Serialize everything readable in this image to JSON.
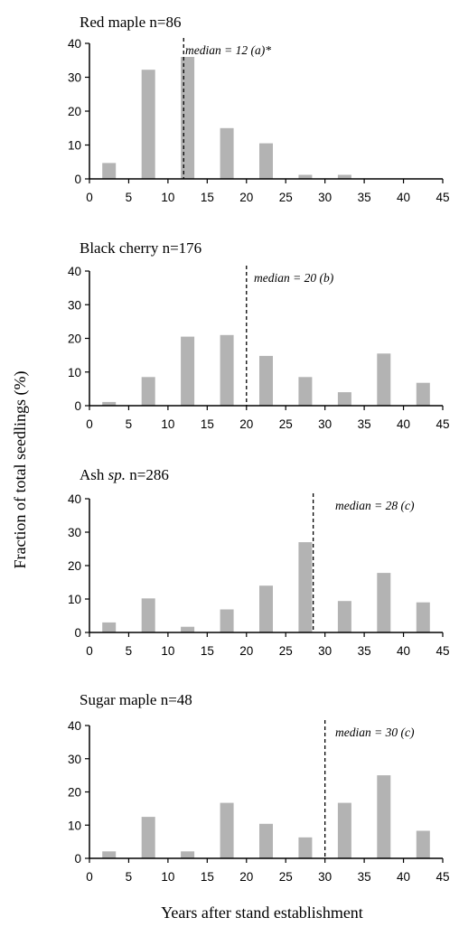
{
  "figure": {
    "ylabel": "Fraction of total seedlings (%)",
    "xlabel": "Years after stand establishment"
  },
  "chart_data": [
    {
      "type": "bar",
      "title": "Red maple n=86",
      "title_parts": [
        {
          "text": "Red maple n=86",
          "italic": false
        }
      ],
      "x": [
        2.5,
        7.5,
        12.5,
        17.5,
        22.5,
        27.5,
        32.5
      ],
      "values": [
        4.7,
        32.2,
        36.0,
        15.0,
        10.5,
        1.2,
        1.2
      ],
      "median": 12,
      "median_label": "median = 12 (a)*",
      "xlim": [
        0,
        45
      ],
      "ylim": [
        0,
        40
      ],
      "xticks": [
        0,
        5,
        10,
        15,
        20,
        25,
        30,
        35,
        40,
        45
      ],
      "yticks": [
        0,
        10,
        20,
        30,
        40
      ],
      "colors": {
        "bar": "#b3b3b3"
      }
    },
    {
      "type": "bar",
      "title": "Black cherry n=176",
      "title_parts": [
        {
          "text": "Black cherry n=176",
          "italic": false
        }
      ],
      "x": [
        2.5,
        7.5,
        12.5,
        17.5,
        22.5,
        27.5,
        32.5,
        37.5,
        42.5
      ],
      "values": [
        1.1,
        8.5,
        20.5,
        21.0,
        14.8,
        8.5,
        4.0,
        15.5,
        6.8
      ],
      "median": 20,
      "median_label": "median = 20 (b)",
      "xlim": [
        0,
        45
      ],
      "ylim": [
        0,
        40
      ],
      "xticks": [
        0,
        5,
        10,
        15,
        20,
        25,
        30,
        35,
        40,
        45
      ],
      "yticks": [
        0,
        10,
        20,
        30,
        40
      ],
      "colors": {
        "bar": "#b3b3b3"
      }
    },
    {
      "type": "bar",
      "title": "Ash sp. n=286",
      "title_parts": [
        {
          "text": "Ash ",
          "italic": false
        },
        {
          "text": "sp.",
          "italic": true
        },
        {
          "text": " n=286",
          "italic": false
        }
      ],
      "x": [
        2.5,
        7.5,
        12.5,
        17.5,
        22.5,
        27.5,
        32.5,
        37.5,
        42.5
      ],
      "values": [
        3.0,
        10.2,
        1.7,
        6.9,
        14.0,
        27.0,
        9.4,
        17.8,
        9.0
      ],
      "median": 28.5,
      "median_label": "median = 28 (c)",
      "xlim": [
        0,
        45
      ],
      "ylim": [
        0,
        40
      ],
      "xticks": [
        0,
        5,
        10,
        15,
        20,
        25,
        30,
        35,
        40,
        45
      ],
      "yticks": [
        0,
        10,
        20,
        30,
        40
      ],
      "colors": {
        "bar": "#b3b3b3"
      }
    },
    {
      "type": "bar",
      "title": "Sugar maple n=48",
      "title_parts": [
        {
          "text": "Sugar maple n=48",
          "italic": false
        }
      ],
      "x": [
        2.5,
        7.5,
        12.5,
        17.5,
        22.5,
        27.5,
        32.5,
        37.5,
        42.5
      ],
      "values": [
        2.1,
        12.5,
        2.1,
        16.7,
        10.4,
        6.3,
        16.7,
        25.0,
        8.3
      ],
      "median": 30,
      "median_label": "median = 30 (c)",
      "xlim": [
        0,
        45
      ],
      "ylim": [
        0,
        40
      ],
      "xticks": [
        0,
        5,
        10,
        15,
        20,
        25,
        30,
        35,
        40,
        45
      ],
      "yticks": [
        0,
        10,
        20,
        30,
        40
      ],
      "colors": {
        "bar": "#b3b3b3"
      }
    }
  ]
}
